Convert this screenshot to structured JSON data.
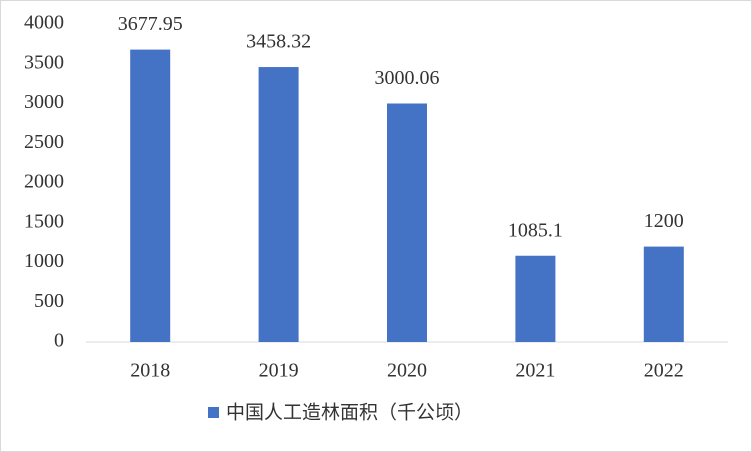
{
  "chart_data": {
    "type": "bar",
    "categories": [
      "2018",
      "2019",
      "2020",
      "2021",
      "2022"
    ],
    "series": [
      {
        "name": "中国人工造林面积（千公顷）",
        "color": "#4472c4",
        "values": [
          3677.95,
          3458.32,
          3000.06,
          1085.1,
          1200
        ]
      }
    ],
    "ylim": [
      0,
      4000
    ],
    "yticks": [
      0,
      500,
      1000,
      1500,
      2000,
      2500,
      3000,
      3500,
      4000
    ],
    "grid": false,
    "legend": "bottom"
  }
}
